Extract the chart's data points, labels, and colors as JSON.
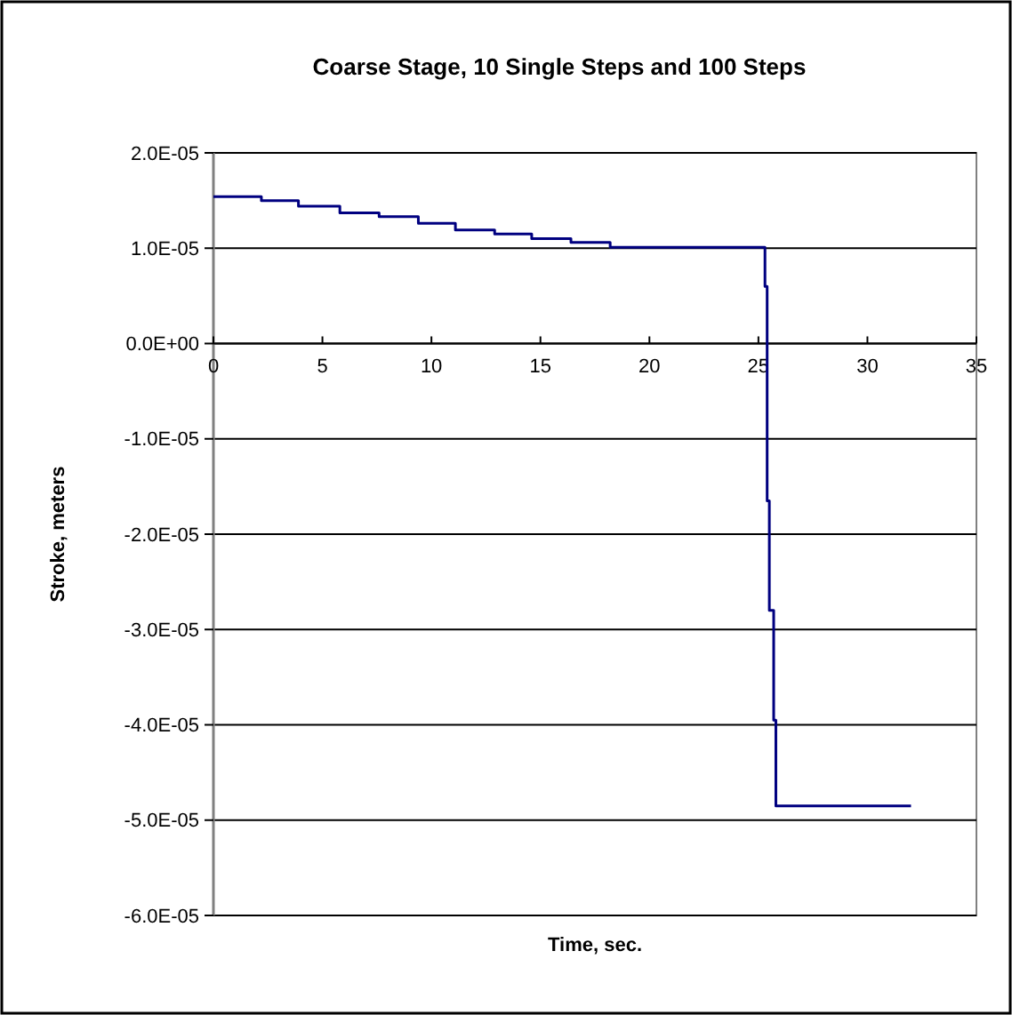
{
  "chart_data": {
    "type": "step",
    "title": "Coarse Stage, 10 Single Steps and 100 Steps",
    "xlabel": "Time, sec.",
    "ylabel": "Stroke, meters",
    "x": [
      0,
      2.2,
      3.9,
      5.8,
      7.6,
      9.4,
      11.1,
      12.9,
      14.6,
      16.4,
      18.2,
      25.3,
      25.4,
      25.5,
      25.7,
      25.8,
      32
    ],
    "values": [
      1.54e-05,
      1.5e-05,
      1.44e-05,
      1.37e-05,
      1.33e-05,
      1.26e-05,
      1.19e-05,
      1.15e-05,
      1.1e-05,
      1.06e-05,
      1.01e-05,
      6e-06,
      -1.65e-05,
      -2.8e-05,
      -3.95e-05,
      -4.85e-05,
      -4.85e-05
    ],
    "color": "#000080",
    "xlim": [
      0,
      35
    ],
    "xticks": [
      0,
      5,
      10,
      15,
      20,
      25,
      30,
      35
    ],
    "ylim": [
      -6e-05,
      2e-05
    ],
    "yticks": [
      {
        "value": 2e-05,
        "label": "2.0E-05"
      },
      {
        "value": 1e-05,
        "label": "1.0E-05"
      },
      {
        "value": 0,
        "label": "0.0E+00"
      },
      {
        "value": -1e-05,
        "label": "-1.0E-05"
      },
      {
        "value": -2e-05,
        "label": "-2.0E-05"
      },
      {
        "value": -3e-05,
        "label": "-3.0E-05"
      },
      {
        "value": -4e-05,
        "label": "-4.0E-05"
      },
      {
        "value": -5e-05,
        "label": "-5.0E-05"
      },
      {
        "value": -6e-05,
        "label": "-6.0E-05"
      }
    ],
    "grid": "y"
  }
}
